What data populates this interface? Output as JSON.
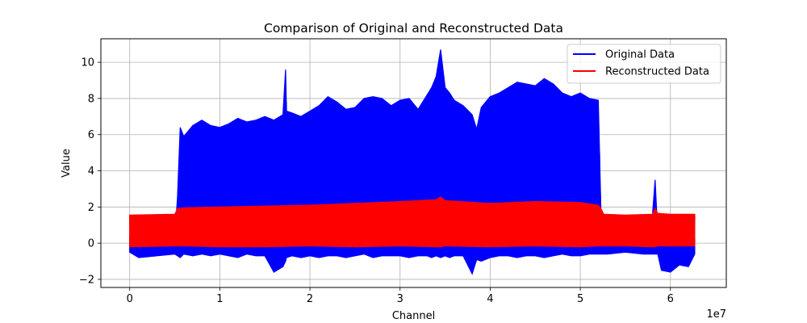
{
  "chart_data": {
    "type": "line",
    "title": "Comparison of Original and Reconstructed Data",
    "xlabel": "Channel",
    "ylabel": "Value",
    "x_offset_label": "1e7",
    "xlim": [
      -3.2,
      66.2
    ],
    "ylim": [
      -2.45,
      11.3
    ],
    "x_ticks": [
      0,
      10,
      20,
      30,
      40,
      50,
      60
    ],
    "x_tick_labels": [
      "0",
      "1",
      "2",
      "3",
      "4",
      "5",
      "6"
    ],
    "y_ticks": [
      -2,
      0,
      2,
      4,
      6,
      8,
      10
    ],
    "y_tick_labels": [
      "−2",
      "0",
      "2",
      "4",
      "6",
      "8",
      "10"
    ],
    "grid": true,
    "legend_position": "top-right",
    "series": [
      {
        "name": "Original Data",
        "color": "#0000ff",
        "envelope": {
          "x": [
            0,
            1,
            3,
            5,
            5.3,
            5.6,
            6,
            7,
            8,
            9,
            10,
            11,
            12,
            13,
            14,
            15,
            16,
            17,
            17.3,
            17.4,
            18,
            19,
            20,
            21,
            22,
            23,
            24,
            25,
            26,
            27,
            28,
            29,
            30,
            31,
            32,
            33,
            33.5,
            34,
            34.5,
            35,
            35.5,
            36,
            37,
            38,
            38.5,
            39,
            40,
            41,
            42,
            43,
            44,
            45,
            46,
            47,
            48,
            49,
            50,
            51,
            52,
            52.3,
            52.6,
            53,
            55,
            57,
            58,
            58.3,
            58.6,
            59,
            60,
            61,
            62,
            62.7
          ],
          "upper": [
            0.4,
            0.3,
            0.3,
            0.35,
            2.5,
            6.4,
            5.9,
            6.5,
            6.8,
            6.5,
            6.4,
            6.6,
            6.9,
            6.7,
            6.8,
            7.0,
            6.8,
            7.1,
            9.6,
            7.3,
            7.2,
            7.0,
            7.3,
            7.6,
            8.1,
            7.8,
            7.4,
            7.5,
            8.0,
            8.1,
            8.0,
            7.6,
            7.9,
            8.0,
            7.4,
            8.2,
            8.6,
            9.2,
            10.7,
            8.6,
            8.3,
            7.9,
            7.6,
            7.1,
            6.3,
            7.5,
            8.1,
            8.3,
            8.6,
            8.9,
            8.8,
            8.7,
            9.1,
            8.8,
            8.3,
            8.1,
            8.3,
            8.0,
            7.9,
            1.5,
            0.4,
            0.35,
            0.35,
            0.4,
            1.5,
            3.5,
            0.5,
            0.35,
            0.35,
            0.3,
            0.3,
            0.3
          ],
          "lower": [
            -0.5,
            -0.8,
            -0.7,
            -0.6,
            -0.7,
            -0.8,
            -0.6,
            -0.7,
            -0.6,
            -0.7,
            -0.6,
            -0.7,
            -0.8,
            -0.6,
            -0.7,
            -0.7,
            -1.6,
            -1.3,
            -1.0,
            -0.8,
            -0.7,
            -0.8,
            -0.7,
            -0.8,
            -0.7,
            -0.7,
            -0.8,
            -0.7,
            -0.6,
            -0.8,
            -0.7,
            -0.7,
            -0.7,
            -0.8,
            -0.7,
            -0.7,
            -0.8,
            -0.7,
            -0.8,
            -0.7,
            -0.8,
            -0.7,
            -0.7,
            -1.7,
            -0.9,
            -1.0,
            -0.8,
            -0.7,
            -0.7,
            -0.8,
            -0.7,
            -0.7,
            -0.8,
            -0.7,
            -0.6,
            -0.7,
            -0.7,
            -0.6,
            -0.6,
            -0.6,
            -0.6,
            -0.6,
            -0.5,
            -0.6,
            -0.6,
            -0.6,
            -0.6,
            -1.5,
            -1.6,
            -1.2,
            -1.3,
            -0.6
          ]
        }
      },
      {
        "name": "Reconstructed Data",
        "color": "#ff0000",
        "envelope": {
          "x": [
            0,
            5,
            5.3,
            6,
            10,
            15,
            20,
            25,
            30,
            34,
            34.5,
            35,
            40,
            45,
            50,
            52,
            52.3,
            52.6,
            55,
            58,
            58.3,
            58.6,
            60,
            62.7
          ],
          "upper": [
            1.55,
            1.6,
            1.9,
            1.95,
            2.0,
            2.05,
            2.1,
            2.2,
            2.3,
            2.4,
            2.55,
            2.35,
            2.2,
            2.3,
            2.25,
            2.1,
            1.9,
            1.6,
            1.55,
            1.6,
            1.9,
            1.65,
            1.6,
            1.6
          ],
          "lower": [
            -0.2,
            -0.15,
            -0.15,
            -0.15,
            -0.2,
            -0.2,
            -0.15,
            -0.2,
            -0.15,
            -0.2,
            -0.2,
            -0.15,
            -0.2,
            -0.15,
            -0.2,
            -0.15,
            -0.15,
            -0.15,
            -0.15,
            -0.2,
            -0.2,
            -0.15,
            -0.15,
            -0.15
          ]
        }
      }
    ]
  }
}
